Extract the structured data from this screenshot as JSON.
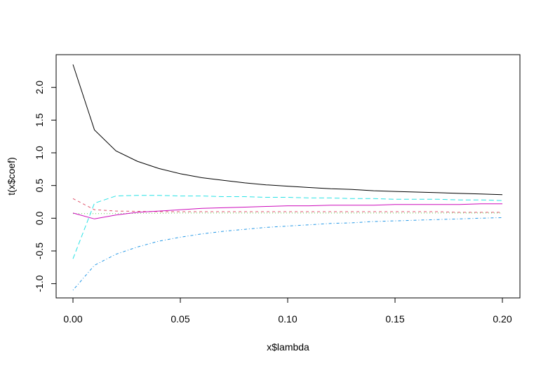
{
  "chart_data": {
    "type": "line",
    "title": "",
    "xlabel": "x$lambda",
    "ylabel": "t(x$coef)",
    "xlim": [
      0.0,
      0.2
    ],
    "ylim": [
      -1.1,
      2.35
    ],
    "xticks": [
      0.0,
      0.05,
      0.1,
      0.15,
      0.2
    ],
    "xtick_labels": [
      "0.00",
      "0.05",
      "0.10",
      "0.15",
      "0.20"
    ],
    "yticks": [
      -1.0,
      -0.5,
      0.0,
      0.5,
      1.0,
      1.5,
      2.0
    ],
    "ytick_labels": [
      "-1.0",
      "-0.5",
      "0.0",
      "0.5",
      "1.0",
      "1.5",
      "2.0"
    ],
    "grid": false,
    "legend": "none",
    "x": [
      0.0,
      0.01,
      0.02,
      0.03,
      0.04,
      0.05,
      0.06,
      0.07,
      0.08,
      0.09,
      0.1,
      0.11,
      0.12,
      0.13,
      0.14,
      0.15,
      0.16,
      0.17,
      0.18,
      0.19,
      0.2
    ],
    "series": [
      {
        "color": "#000000",
        "dash": "solid",
        "values": [
          2.35,
          1.35,
          1.03,
          0.87,
          0.76,
          0.68,
          0.62,
          0.58,
          0.54,
          0.51,
          0.49,
          0.47,
          0.45,
          0.44,
          0.42,
          0.41,
          0.4,
          0.39,
          0.38,
          0.37,
          0.36
        ]
      },
      {
        "color": "#DF536B",
        "dash": "dashed",
        "values": [
          0.3,
          0.13,
          0.11,
          0.105,
          0.1,
          0.1,
          0.1,
          0.1,
          0.1,
          0.1,
          0.1,
          0.1,
          0.1,
          0.1,
          0.1,
          0.1,
          0.1,
          0.1,
          0.09,
          0.09,
          0.09
        ]
      },
      {
        "color": "#61D04F",
        "dash": "dotted",
        "values": [
          0.07,
          0.07,
          0.07,
          0.075,
          0.075,
          0.08,
          0.08,
          0.08,
          0.08,
          0.08,
          0.08,
          0.08,
          0.08,
          0.08,
          0.08,
          0.08,
          0.08,
          0.08,
          0.08,
          0.08,
          0.08
        ]
      },
      {
        "color": "#2297E6",
        "dash": "dotdash",
        "values": [
          -1.1,
          -0.72,
          -0.55,
          -0.44,
          -0.35,
          -0.29,
          -0.24,
          -0.2,
          -0.17,
          -0.14,
          -0.12,
          -0.1,
          -0.08,
          -0.07,
          -0.05,
          -0.04,
          -0.03,
          -0.02,
          -0.01,
          0.0,
          0.01
        ]
      },
      {
        "color": "#28E2E5",
        "dash": "longdash",
        "values": [
          -0.62,
          0.23,
          0.34,
          0.35,
          0.35,
          0.34,
          0.34,
          0.33,
          0.33,
          0.32,
          0.32,
          0.31,
          0.31,
          0.3,
          0.3,
          0.29,
          0.29,
          0.29,
          0.28,
          0.28,
          0.27
        ]
      },
      {
        "color": "#CD0BBC",
        "dash": "solid",
        "values": [
          0.08,
          -0.01,
          0.05,
          0.09,
          0.11,
          0.13,
          0.15,
          0.16,
          0.17,
          0.18,
          0.19,
          0.19,
          0.2,
          0.2,
          0.2,
          0.21,
          0.21,
          0.21,
          0.21,
          0.22,
          0.22
        ]
      }
    ]
  }
}
